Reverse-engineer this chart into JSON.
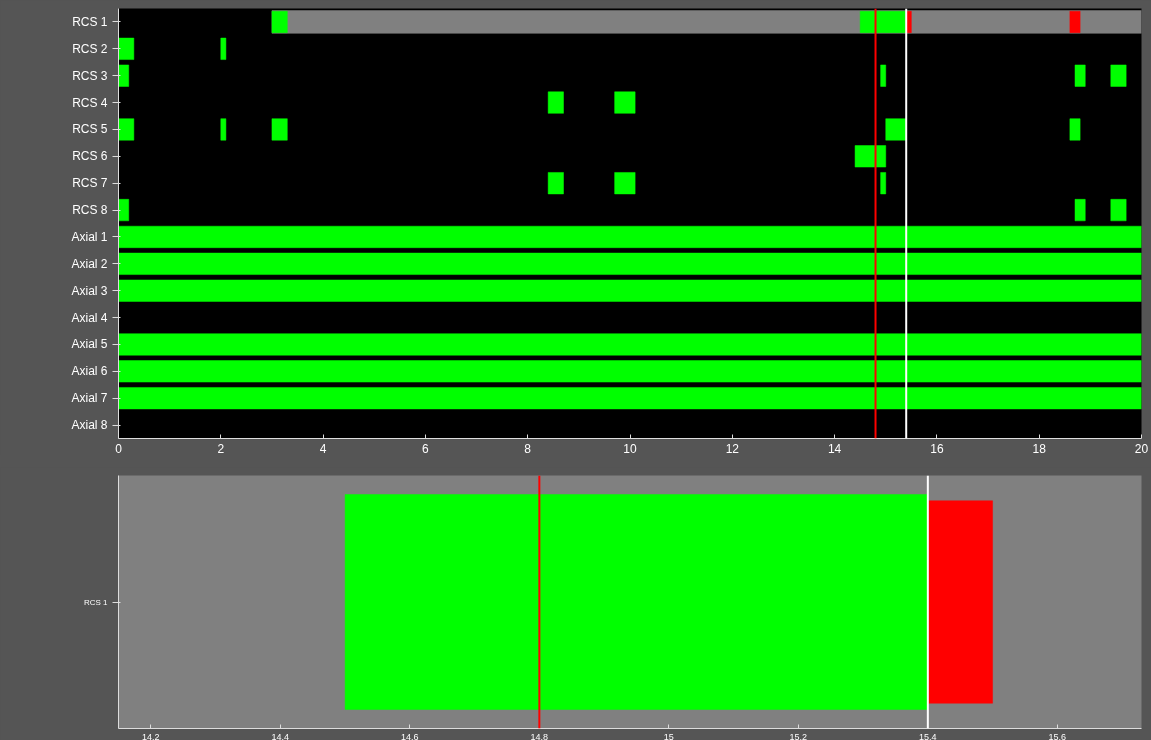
{
  "chart_data": [
    {
      "type": "bar",
      "orientation": "horizontal",
      "categories": [
        "RCS 1",
        "RCS 2",
        "RCS 3",
        "RCS 4",
        "RCS 5",
        "RCS 6",
        "RCS 7",
        "RCS 8",
        "Axial 1",
        "Axial 2",
        "Axial 3",
        "Axial 4",
        "Axial 5",
        "Axial 6",
        "Axial 7",
        "Axial 8"
      ],
      "xlim": [
        0,
        20
      ],
      "xticks": [
        0,
        2,
        4,
        6,
        8,
        10,
        12,
        14,
        16,
        18,
        20
      ],
      "grid": false,
      "series": [
        {
          "color": "#808080",
          "base": [
            3,
            null,
            null,
            null,
            null,
            null,
            null,
            null,
            null,
            null,
            null,
            null,
            null,
            null,
            null,
            null
          ],
          "values": [
            17,
            null,
            null,
            null,
            null,
            null,
            null,
            null,
            null,
            null,
            null,
            null,
            null,
            null,
            null,
            null
          ]
        },
        {
          "color": "#00ff00",
          "base": [
            3,
            0,
            0,
            8.4,
            0,
            14.4,
            8.4,
            0,
            0,
            0,
            0,
            null,
            0,
            0,
            0,
            null
          ],
          "values": [
            0.3,
            0.3,
            0.2,
            0.3,
            0.3,
            0.6,
            0.3,
            0.2,
            20,
            20,
            20,
            null,
            20,
            20,
            20,
            null
          ]
        },
        {
          "color": "#00ff00",
          "base": [
            14.5,
            2.0,
            14.9,
            9.7,
            2.0,
            null,
            9.7,
            18.7,
            null,
            null,
            null,
            null,
            null,
            null,
            null,
            null
          ],
          "values": [
            0.9,
            0.1,
            0.1,
            0.4,
            0.1,
            null,
            0.4,
            0.2,
            null,
            null,
            null,
            null,
            null,
            null,
            null,
            null
          ]
        },
        {
          "color": "#00ff00",
          "base": [
            null,
            null,
            18.7,
            null,
            3.0,
            null,
            14.9,
            19.4,
            null,
            null,
            null,
            null,
            null,
            null,
            null,
            null
          ],
          "values": [
            null,
            null,
            0.2,
            null,
            0.3,
            null,
            0.1,
            0.3,
            null,
            null,
            null,
            null,
            null,
            null,
            null,
            null
          ]
        },
        {
          "color": "#00ff00",
          "base": [
            null,
            null,
            19.4,
            null,
            15.0,
            null,
            null,
            null,
            null,
            null,
            null,
            null,
            null,
            null,
            null,
            null
          ],
          "values": [
            null,
            null,
            0.3,
            null,
            0.4,
            null,
            null,
            null,
            null,
            null,
            null,
            null,
            null,
            null,
            null,
            null
          ]
        },
        {
          "color": "#00ff00",
          "base": [
            null,
            null,
            null,
            null,
            18.6,
            null,
            null,
            null,
            null,
            null,
            null,
            null,
            null,
            null,
            null,
            null
          ],
          "values": [
            null,
            null,
            null,
            null,
            0.2,
            null,
            null,
            null,
            null,
            null,
            null,
            null,
            null,
            null,
            null,
            null
          ]
        },
        {
          "color": "#ff0000",
          "base": [
            15.4,
            null,
            null,
            null,
            null,
            null,
            null,
            null,
            null,
            null,
            null,
            null,
            null,
            null,
            null,
            null
          ],
          "values": [
            0.1,
            null,
            null,
            null,
            null,
            null,
            null,
            null,
            null,
            null,
            null,
            null,
            null,
            null,
            null,
            null
          ]
        },
        {
          "color": "#ff0000",
          "base": [
            18.6,
            null,
            null,
            null,
            null,
            null,
            null,
            null,
            null,
            null,
            null,
            null,
            null,
            null,
            null,
            null
          ],
          "values": [
            0.2,
            null,
            null,
            null,
            null,
            null,
            null,
            null,
            null,
            null,
            null,
            null,
            null,
            null,
            null,
            null
          ]
        }
      ],
      "ref_lines": [
        {
          "axis": "x",
          "value": 14.8,
          "color": "#ff0000"
        },
        {
          "axis": "x",
          "value": 15.4,
          "color": "#ffffff"
        }
      ]
    },
    {
      "type": "bar",
      "orientation": "horizontal",
      "categories": [
        "RCS 1"
      ],
      "xlim": [
        14.15,
        15.73
      ],
      "xticks": [
        14.2,
        14.4,
        14.6,
        14.8,
        15,
        15.2,
        15.4,
        15.6
      ],
      "grid": false,
      "series": [
        {
          "color": "#00ff00",
          "base": [
            14.5
          ],
          "values": [
            0.9
          ]
        },
        {
          "color": "#ff0000",
          "base": [
            15.4
          ],
          "values": [
            0.1
          ]
        }
      ],
      "ref_lines": [
        {
          "axis": "x",
          "value": 14.8,
          "color": "#ff0000"
        },
        {
          "axis": "x",
          "value": 15.4,
          "color": "#ffffff"
        }
      ]
    }
  ]
}
